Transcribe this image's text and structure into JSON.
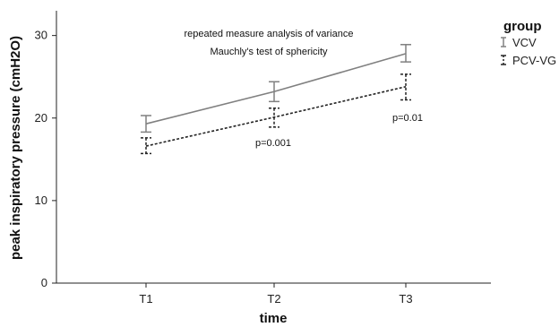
{
  "chart_data": {
    "type": "line",
    "categories": [
      "T1",
      "T2",
      "T3"
    ],
    "ylim": [
      0,
      33
    ],
    "yticks": [
      0,
      10,
      20,
      30
    ],
    "xlabel": "time",
    "ylabel": "peak inspiratory pressure (cmH2O)",
    "grid": false,
    "legend": {
      "title": "group",
      "position": "right"
    },
    "series": [
      {
        "name": "VCV",
        "values": [
          19.3,
          23.2,
          27.8
        ],
        "error_low": [
          18.3,
          22.0,
          26.8
        ],
        "error_high": [
          20.3,
          24.4,
          28.9
        ],
        "line_style": "solid",
        "color": "#808080"
      },
      {
        "name": "PCV-VG",
        "values": [
          16.6,
          20.1,
          23.8
        ],
        "error_low": [
          15.7,
          18.9,
          22.2
        ],
        "error_high": [
          17.6,
          21.2,
          25.3
        ],
        "line_style": "dotted",
        "color": "#222222"
      }
    ],
    "annotations": [
      {
        "text": "repeated measure analysis of variance",
        "role": "note"
      },
      {
        "text": "Mauchly's test of sphericity",
        "role": "note"
      },
      {
        "text": "p=0.001",
        "category": "T2",
        "y": 17.2
      },
      {
        "text": "p=0.01",
        "category": "T3",
        "y": 20.2
      }
    ]
  }
}
